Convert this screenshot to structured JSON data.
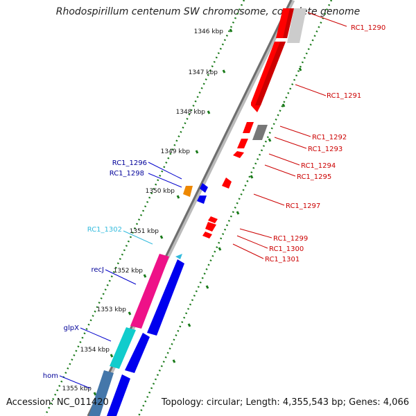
{
  "title": "Rhodospirillum centenum SW chromosome, complete genome",
  "accession": "Accession: NC_011420",
  "topology": "Topology: circular; Length: 4,355,543 bp; Genes: 4,066",
  "kbp_labels": [
    "1346 kbp",
    "1347 kbp",
    "1348 kbp",
    "1349 kbp",
    "1350 kbp",
    "1351 kbp",
    "1352 kbp",
    "1353 kbp",
    "1354 kbp",
    "1355 kbp"
  ],
  "right_genes": [
    "RC1_1290",
    "RC1_1291",
    "RC1_1292",
    "RC1_1293",
    "RC1_1294",
    "RC1_1295",
    "RC1_1297",
    "RC1_1299",
    "RC1_1300",
    "RC1_1301"
  ],
  "left_genes": [
    "RC1_1296",
    "RC1_1298",
    "RC1_1302",
    "recJ",
    "glpX",
    "hom"
  ],
  "colors": {
    "red": "#ff0000",
    "dark_red": "#cc0000",
    "gray": "#777777",
    "light_gray": "#cccccc",
    "blue": "#0000ee",
    "navy": "#000099",
    "cyan": "#33bbdd",
    "magenta": "#ee1188",
    "teal": "#11cccc",
    "steel": "#4477aa",
    "orange": "#ee8800",
    "tick_green": "#1a7a1a"
  }
}
